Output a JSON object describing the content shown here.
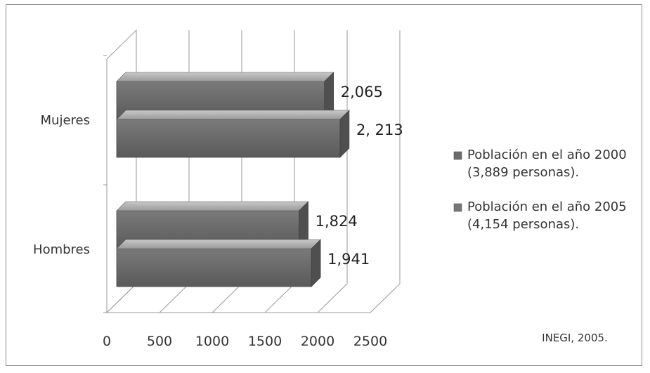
{
  "chart_data": {
    "type": "bar",
    "orientation": "horizontal",
    "style": "3d-clustered",
    "categories": [
      "Mujeres",
      "Hombres"
    ],
    "series": [
      {
        "name": "Población en el año 2000",
        "name_line2": "(3,889 personas).",
        "values": [
          2065,
          1824
        ],
        "labels": [
          "2,065",
          "1,824"
        ],
        "color": "#6b6b6b"
      },
      {
        "name": "Población en el año 2005",
        "name_line2": "(4,154 personas).",
        "values": [
          2213,
          1941
        ],
        "labels": [
          "2, 213",
          "1,941"
        ],
        "color": "#777777"
      }
    ],
    "x_ticks": [
      "0",
      "500",
      "1000",
      "1500",
      "2000",
      "2500"
    ],
    "xlim": [
      0,
      2500
    ],
    "grid": true,
    "legend_position": "right"
  },
  "source_note": "INEGI, 2005."
}
